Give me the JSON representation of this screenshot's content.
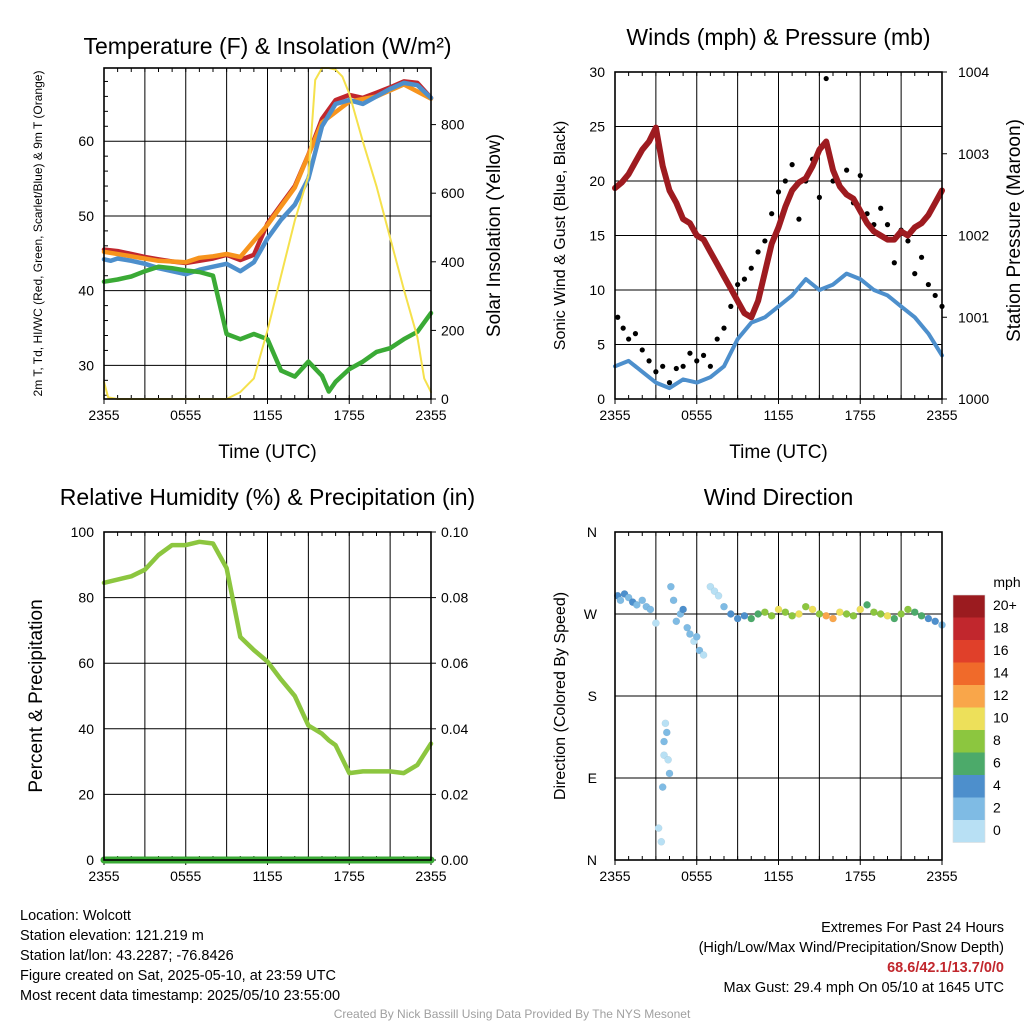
{
  "chart_data": [
    {
      "id": "temperature",
      "type": "line",
      "title": "Temperature (F) & Insolation (W/m²)",
      "xlabel": "Time (UTC)",
      "ylabel": "2m T, Td, HI/WC (Red, Green, Scarlet/Blue) & 9m T (Orange)",
      "ylabel_right": "Solar Insolation (Yellow)",
      "xticks": [
        "2355",
        "0555",
        "1155",
        "1755",
        "2355"
      ],
      "xlim_hours": [
        0,
        24
      ],
      "ylim": [
        25.5,
        69.8
      ],
      "yticks": [
        30,
        40,
        50,
        60
      ],
      "ylim_right": [
        0,
        965
      ],
      "yticks_right": [
        0,
        200,
        400,
        600,
        800
      ],
      "grid": true,
      "series": [
        {
          "name": "2m T",
          "color": "#c1272d",
          "axis": "left",
          "x": [
            0,
            1,
            2,
            3,
            4,
            5,
            6,
            7,
            8,
            9,
            10,
            11,
            12,
            13,
            14,
            15,
            16,
            17,
            18,
            19,
            20,
            21,
            22,
            23,
            24
          ],
          "y": [
            45.5,
            45.3,
            44.9,
            44.5,
            44.2,
            43.9,
            43.7,
            44.0,
            44.3,
            44.8,
            44.1,
            44.8,
            49.0,
            51.5,
            54.0,
            58.2,
            63.0,
            65.5,
            66.2,
            65.8,
            66.5,
            67.2,
            68.0,
            67.8,
            65.8
          ]
        },
        {
          "name": "9m T",
          "color": "#f7941d",
          "axis": "left",
          "x": [
            0,
            2,
            4,
            6,
            7,
            8,
            9,
            10,
            12,
            14,
            16,
            18,
            20,
            22,
            24
          ],
          "y": [
            45.2,
            44.6,
            44.0,
            43.8,
            44.4,
            44.6,
            44.9,
            44.5,
            48.8,
            53.8,
            62.5,
            65.3,
            66.0,
            67.6,
            65.7
          ]
        },
        {
          "name": "HI/WC",
          "color": "#4d8fcc",
          "axis": "left",
          "x": [
            0,
            0.5,
            1,
            2,
            3,
            4,
            5,
            6,
            7,
            8,
            9,
            10,
            11,
            12,
            13,
            14,
            15,
            16,
            17,
            18,
            19,
            20,
            21,
            22,
            23,
            24
          ],
          "y": [
            44.2,
            44.0,
            44.3,
            44.0,
            43.6,
            43.0,
            42.6,
            42.2,
            42.8,
            43.2,
            43.6,
            42.6,
            43.8,
            47.0,
            49.5,
            51.5,
            55.0,
            62.0,
            65.0,
            65.5,
            65.0,
            66.0,
            67.0,
            67.8,
            67.5,
            65.8
          ]
        },
        {
          "name": "Td",
          "color": "#3aaa35",
          "axis": "left",
          "x": [
            0,
            1,
            2,
            3,
            4,
            5,
            6,
            7,
            8,
            9,
            10,
            11,
            12,
            13,
            14,
            15,
            16,
            16.5,
            17,
            18,
            19,
            20,
            21,
            22,
            23,
            24
          ],
          "y": [
            41.2,
            41.5,
            41.9,
            42.6,
            43.2,
            43.0,
            42.7,
            42.5,
            42.0,
            34.2,
            33.5,
            34.2,
            33.5,
            29.3,
            28.5,
            30.5,
            28.6,
            26.5,
            27.8,
            29.5,
            30.5,
            31.8,
            32.3,
            33.5,
            34.5,
            37.0
          ]
        },
        {
          "name": "Solar Insolation",
          "color": "#f5e14c",
          "axis": "right",
          "x": [
            0,
            0.3,
            1,
            2,
            3,
            4,
            5,
            6,
            7,
            8,
            9,
            10,
            11,
            12,
            13,
            14,
            15,
            15.5,
            16,
            16.5,
            17,
            17.5,
            18,
            19,
            20,
            21,
            22,
            23,
            23.5,
            24
          ],
          "y": [
            50,
            5,
            0,
            0,
            0,
            0,
            0,
            0,
            0,
            0,
            0,
            20,
            60,
            200,
            360,
            520,
            650,
            930,
            965,
            965,
            960,
            940,
            890,
            750,
            620,
            470,
            320,
            180,
            60,
            20
          ]
        }
      ]
    },
    {
      "id": "winds",
      "type": "line",
      "title": "Winds (mph) & Pressure (mb)",
      "xlabel": "Time (UTC)",
      "ylabel": "Sonic Wind & Gust (Blue, Black)",
      "ylabel_right": "Station Pressure (Maroon)",
      "xticks": [
        "2355",
        "0555",
        "1155",
        "1755",
        "2355"
      ],
      "xlim_hours": [
        0,
        24
      ],
      "ylim": [
        0,
        30
      ],
      "yticks": [
        0,
        5,
        10,
        15,
        20,
        25,
        30
      ],
      "ylim_right": [
        1000,
        1004
      ],
      "yticks_right": [
        1000,
        1001,
        1002,
        1003,
        1004
      ],
      "grid": true,
      "series": [
        {
          "name": "Sonic Wind",
          "color": "#4d8fcc",
          "axis": "left",
          "x": [
            0,
            1,
            2,
            3,
            4,
            5,
            6,
            7,
            8,
            9,
            10,
            11,
            12,
            13,
            14,
            15,
            16,
            17,
            18,
            19,
            20,
            21,
            22,
            23,
            24
          ],
          "y": [
            3.0,
            3.5,
            2.5,
            1.5,
            1.0,
            1.8,
            1.5,
            2.0,
            3.0,
            5.5,
            7.0,
            7.5,
            8.5,
            9.5,
            11.0,
            10.0,
            10.5,
            11.5,
            11.0,
            10.0,
            9.5,
            8.5,
            7.5,
            6.0,
            4.0
          ]
        },
        {
          "name": "Gust",
          "color": "#000000",
          "axis": "left",
          "mode": "markers",
          "x": [
            0.2,
            0.6,
            1,
            1.5,
            2,
            2.5,
            3,
            3.5,
            4,
            4.5,
            5,
            5.5,
            6,
            6.5,
            7,
            7.5,
            8,
            8.5,
            9,
            9.5,
            10,
            10.5,
            11,
            11.5,
            12,
            12.5,
            13,
            13.5,
            14,
            14.5,
            15,
            15.5,
            16,
            16.5,
            17,
            17.5,
            18,
            18.5,
            19,
            19.5,
            20,
            20.5,
            21,
            21.5,
            22,
            22.5,
            23,
            23.5,
            24
          ],
          "y": [
            7.5,
            6.5,
            5.5,
            6.0,
            4.5,
            3.5,
            2.5,
            3.0,
            1.5,
            2.8,
            3.0,
            4.2,
            3.5,
            4.0,
            3.0,
            5.5,
            6.5,
            8.5,
            10.5,
            11.0,
            12.0,
            13.5,
            14.5,
            17.0,
            19.0,
            20.0,
            21.5,
            16.5,
            20.0,
            22.0,
            18.5,
            29.4,
            20.0,
            19.5,
            21.0,
            18.0,
            20.5,
            17.0,
            16.0,
            17.5,
            16.0,
            12.5,
            15.5,
            14.5,
            11.5,
            13.0,
            10.5,
            9.5,
            8.5
          ]
        },
        {
          "name": "Station Pressure",
          "color": "#9e1b20",
          "axis": "right",
          "x": [
            0,
            0.5,
            1,
            1.5,
            2,
            2.5,
            3,
            3.5,
            4,
            4.5,
            5,
            5.5,
            6,
            6.5,
            7,
            7.5,
            8,
            8.5,
            9,
            9.5,
            10,
            10.5,
            11,
            11.5,
            12,
            12.5,
            13,
            13.5,
            14,
            14.5,
            15,
            15.5,
            16,
            16.5,
            17,
            17.5,
            18,
            18.5,
            19,
            19.5,
            20,
            20.5,
            21,
            21.5,
            22,
            22.5,
            23,
            23.5,
            24
          ],
          "y": [
            1002.58,
            1002.65,
            1002.75,
            1002.9,
            1003.05,
            1003.15,
            1003.32,
            1002.85,
            1002.55,
            1002.4,
            1002.2,
            1002.15,
            1002.0,
            1001.95,
            1001.8,
            1001.65,
            1001.5,
            1001.35,
            1001.2,
            1001.05,
            1001.0,
            1001.2,
            1001.55,
            1001.9,
            1002.1,
            1002.35,
            1002.55,
            1002.65,
            1002.7,
            1002.85,
            1003.05,
            1003.15,
            1002.8,
            1002.6,
            1002.5,
            1002.45,
            1002.3,
            1002.15,
            1002.05,
            1002.0,
            1001.95,
            1001.95,
            1002.05,
            1002.0,
            1002.1,
            1002.15,
            1002.25,
            1002.4,
            1002.55
          ]
        }
      ]
    },
    {
      "id": "humidity",
      "type": "line",
      "title": "Relative Humidity (%) & Precipitation (in)",
      "xlabel": "",
      "ylabel": "Percent & Precipitation",
      "ylabel_right": "",
      "xticks": [
        "2355",
        "0555",
        "1155",
        "1755",
        "2355"
      ],
      "xlim_hours": [
        0,
        24
      ],
      "ylim": [
        0,
        100
      ],
      "yticks": [
        0,
        20,
        40,
        60,
        80,
        100
      ],
      "ylim_right": [
        0,
        0.1
      ],
      "yticks_right": [
        "0.00",
        "0.02",
        "0.04",
        "0.06",
        "0.08",
        "0.10"
      ],
      "grid": true,
      "series": [
        {
          "name": "Relative Humidity",
          "color": "#8cc63f",
          "axis": "left",
          "x": [
            0,
            1,
            2,
            3,
            4,
            5,
            6,
            7,
            8,
            9,
            10,
            11,
            12,
            13,
            14,
            15,
            16,
            16.5,
            17,
            18,
            19,
            20,
            21,
            22,
            23,
            24
          ],
          "y": [
            84.5,
            85.5,
            86.5,
            88.5,
            93.0,
            96.0,
            96.0,
            97.0,
            96.5,
            89.0,
            68.0,
            64.0,
            60.5,
            55.0,
            50.0,
            41.0,
            38.5,
            36.5,
            35.0,
            26.5,
            27.0,
            27.0,
            27.0,
            26.5,
            29.0,
            35.5
          ]
        },
        {
          "name": "Precipitation",
          "color": "#3aaa35",
          "axis": "right",
          "x": [
            0,
            24
          ],
          "y": [
            0,
            0
          ]
        }
      ]
    },
    {
      "id": "wind_direction",
      "type": "scatter",
      "title": "Wind Direction",
      "xlabel": "",
      "ylabel": "Direction (Colored By Speed)",
      "xticks": [
        "2355",
        "0555",
        "1155",
        "1755",
        "2355"
      ],
      "xlim_hours": [
        0,
        24
      ],
      "ylim_deg": [
        0,
        360
      ],
      "yticks": [
        "N",
        "E",
        "S",
        "W",
        "N"
      ],
      "grid": true,
      "colorbar": {
        "title": "mph",
        "labels": [
          "20+",
          "18",
          "16",
          "14",
          "12",
          "10",
          "8",
          "6",
          "4",
          "2",
          "0"
        ],
        "colors": [
          "#9b1b1f",
          "#c1272d",
          "#e0402a",
          "#f06a2a",
          "#f9a64a",
          "#ede05a",
          "#8cc63f",
          "#4caa6a",
          "#4d8fcc",
          "#7fbbe4",
          "#b8e0f4"
        ]
      },
      "points_x": [
        0.2,
        0.4,
        0.7,
        1,
        1.3,
        1.6,
        2,
        2.3,
        2.6,
        3.0,
        3.2,
        3.4,
        3.5,
        3.6,
        3.6,
        3.7,
        3.8,
        3.9,
        4.0,
        4.1,
        4.3,
        4.5,
        4.8,
        5.0,
        5.3,
        5.5,
        5.8,
        6.0,
        6.2,
        6.5,
        7.0,
        7.3,
        7.6,
        8.0,
        8.5,
        9.0,
        9.5,
        10,
        10.5,
        11,
        11.5,
        12,
        12.5,
        13,
        13.5,
        14,
        14.5,
        15,
        15.5,
        16,
        16.5,
        17,
        17.5,
        18,
        18.5,
        19,
        19.5,
        20,
        20.5,
        21,
        21.5,
        22,
        22.5,
        23,
        23.5,
        24
      ],
      "points_deg": [
        290,
        285,
        292,
        288,
        283,
        280,
        285,
        278,
        275,
        260,
        35,
        20,
        80,
        115,
        130,
        150,
        140,
        110,
        95,
        300,
        285,
        262,
        270,
        275,
        255,
        248,
        240,
        245,
        230,
        225,
        300,
        295,
        290,
        278,
        270,
        265,
        268,
        265,
        270,
        272,
        268,
        275,
        272,
        268,
        270,
        278,
        275,
        270,
        268,
        265,
        272,
        270,
        268,
        275,
        280,
        272,
        270,
        268,
        265,
        270,
        275,
        272,
        268,
        265,
        262,
        258
      ],
      "points_speed": [
        4,
        3,
        4,
        3,
        4,
        3,
        2,
        3,
        2,
        1,
        1,
        1,
        2,
        1,
        2,
        1,
        2,
        1,
        2,
        3,
        3,
        2,
        3,
        4,
        3,
        2,
        1,
        2,
        2,
        1,
        0,
        1,
        1,
        2,
        4,
        5,
        4,
        6,
        7,
        8,
        9,
        10,
        8,
        9,
        10,
        8,
        11,
        9,
        12,
        13,
        10,
        9,
        8,
        11,
        7,
        8,
        9,
        10,
        7,
        9,
        8,
        6,
        7,
        5,
        4,
        3
      ]
    }
  ],
  "info": {
    "lines": [
      "Location: Wolcott",
      "Station elevation: 121.219 m",
      "Station lat/lon: 43.2287; -76.8426",
      "Figure created on Sat, 2025-05-10, at 23:59 UTC",
      "Most recent data timestamp: 2025/05/10 23:55:00"
    ]
  },
  "extremes": {
    "title": "Extremes For Past 24 Hours",
    "subtitle": "(High/Low/Max Wind/Precipitation/Snow Depth)",
    "values": "68.6/42.1/13.7/0/0",
    "max_gust": "Max Gust: 29.4 mph On 05/10 at 1645 UTC"
  },
  "credit": "Created By Nick Bassill Using Data Provided By The NYS Mesonet"
}
